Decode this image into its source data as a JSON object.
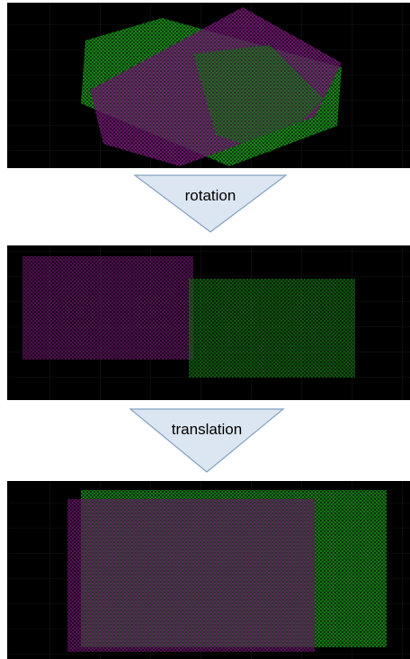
{
  "arrows": [
    {
      "label": "rotation"
    },
    {
      "label": "translation"
    }
  ]
}
